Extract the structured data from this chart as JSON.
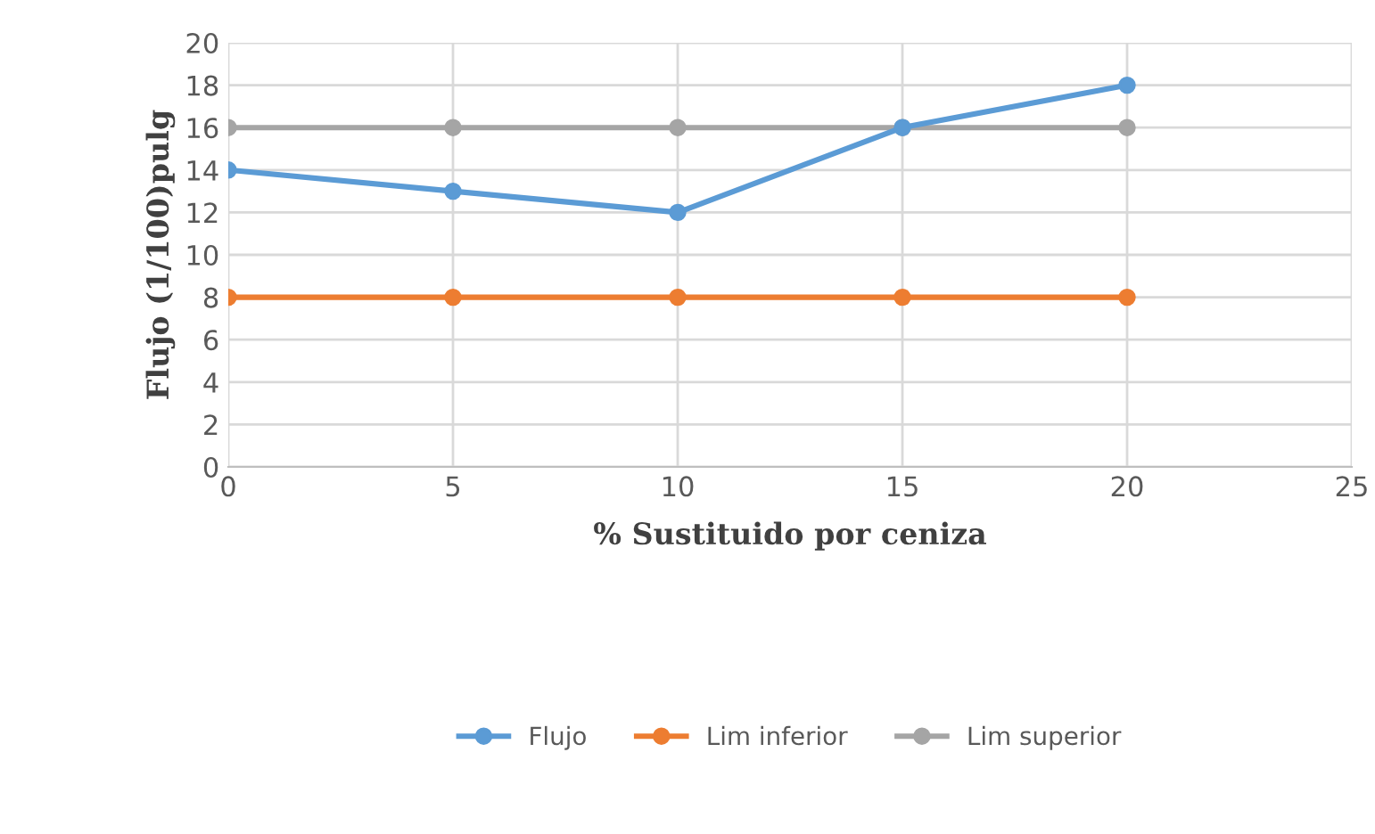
{
  "chart_data": {
    "type": "line",
    "xlabel": "% Sustituido por ceniza",
    "ylabel": "Flujo (1/100)pulg",
    "x": [
      0,
      5,
      10,
      15,
      20
    ],
    "series": [
      {
        "name": "Flujo",
        "color": "#5b9bd5",
        "values": [
          14,
          13,
          12,
          16,
          18
        ]
      },
      {
        "name": "Lim inferior",
        "color": "#ed7d31",
        "values": [
          8,
          8,
          8,
          8,
          8
        ]
      },
      {
        "name": "Lim superior",
        "color": "#a5a5a5",
        "values": [
          16,
          16,
          16,
          16,
          16
        ]
      }
    ],
    "xlim": [
      0,
      25
    ],
    "xticks": [
      0,
      5,
      10,
      15,
      20,
      25
    ],
    "ylim": [
      0,
      20
    ],
    "yticks": [
      0,
      2,
      4,
      6,
      8,
      10,
      12,
      14,
      16,
      18,
      20
    ],
    "grid": true,
    "legend": "bottom",
    "marker": "circle",
    "line_style": "solid"
  }
}
